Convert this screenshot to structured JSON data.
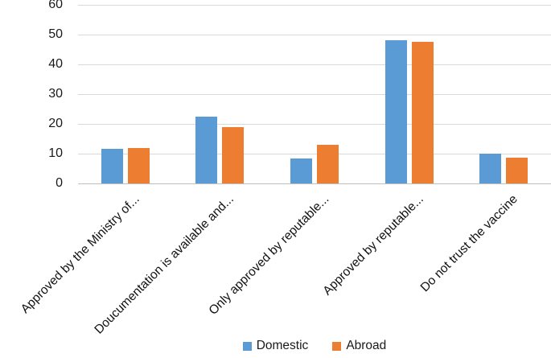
{
  "chart_data": {
    "type": "bar",
    "title": "",
    "xlabel": "",
    "ylabel": "",
    "categories": [
      "Approved by the Ministry of...",
      "Doucumentation is available and...",
      "Only approved by reputable...",
      "Approved by reputable...",
      "Do not trust the vaccine"
    ],
    "series": [
      {
        "name": "Domestic",
        "color": "#5B9BD5",
        "values": [
          11.5,
          22.5,
          8.3,
          48,
          10
        ]
      },
      {
        "name": "Abroad",
        "color": "#ED7D31",
        "values": [
          12,
          19,
          13,
          47.7,
          8.7
        ]
      }
    ],
    "ylim": [
      0,
      60
    ],
    "yticks": [
      0,
      10,
      20,
      30,
      40,
      50,
      60
    ],
    "grid": true,
    "legend_position": "bottom",
    "colors": {
      "gridline": "#D9D9D9",
      "axis_line": "#BFBFBF",
      "tick_text": "#1a1a1a",
      "category_text": "#111111"
    }
  }
}
